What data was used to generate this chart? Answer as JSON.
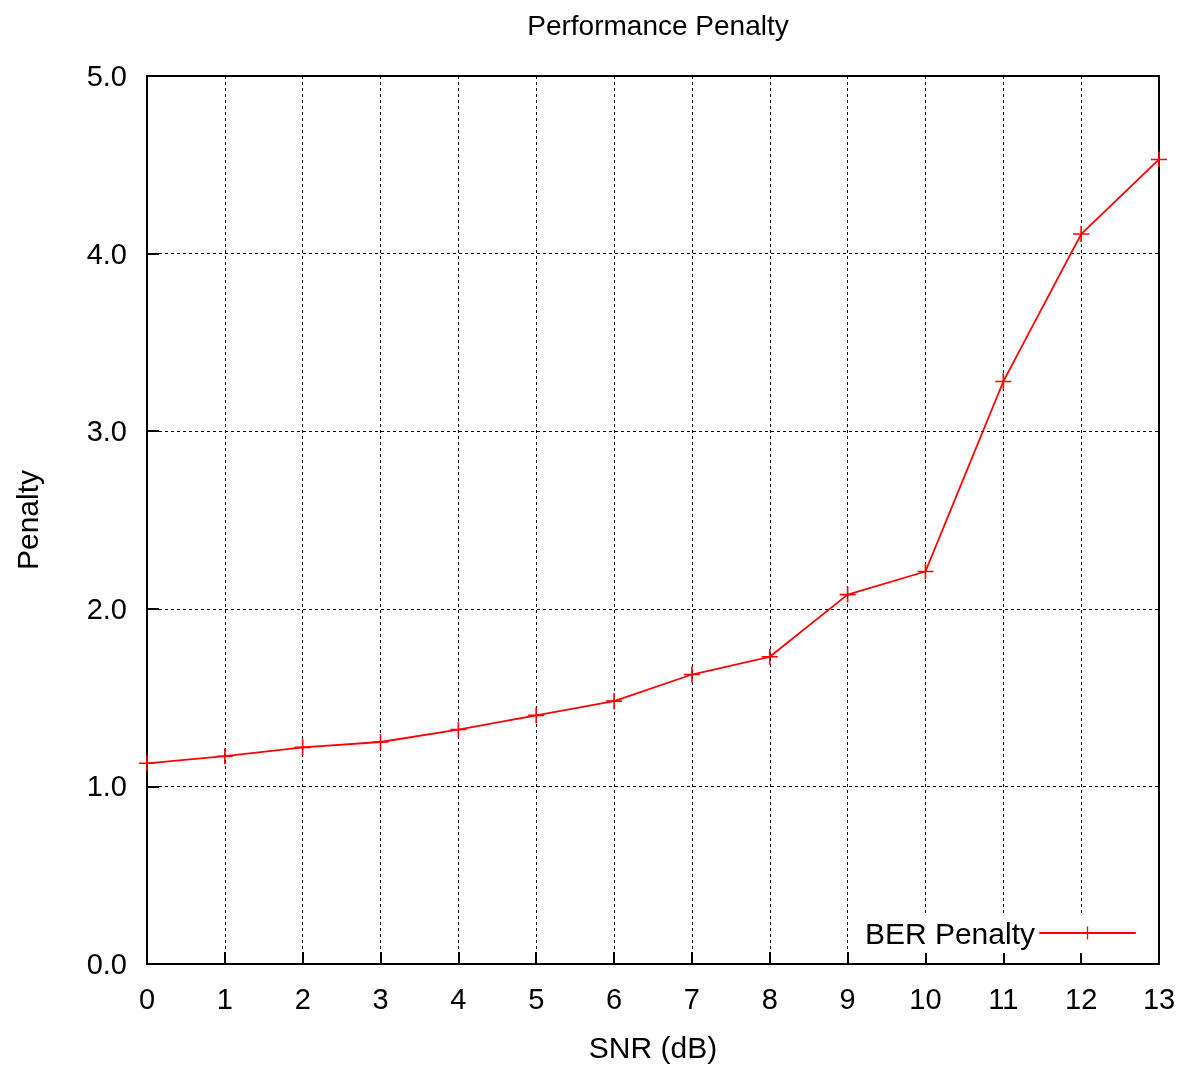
{
  "chart_data": {
    "type": "line",
    "title": "Performance Penalty",
    "xlabel": "SNR (dB)",
    "ylabel": "Penalty",
    "x": [
      0,
      1,
      2,
      3,
      4,
      5,
      6,
      7,
      8,
      9,
      10,
      11,
      12,
      13
    ],
    "series": [
      {
        "name": "BER Penalty",
        "color": "#ff0000",
        "values": [
          1.13,
          1.17,
          1.22,
          1.25,
          1.32,
          1.4,
          1.48,
          1.63,
          1.73,
          2.08,
          2.21,
          3.28,
          4.11,
          4.53
        ]
      }
    ],
    "xlim": [
      0,
      13
    ],
    "xticks": [
      0,
      1,
      2,
      3,
      4,
      5,
      6,
      7,
      8,
      9,
      10,
      11,
      12,
      13
    ],
    "ylim": [
      0,
      5
    ],
    "yticks": [
      {
        "value": 0,
        "label": "0.0"
      },
      {
        "value": 1,
        "label": "1.0"
      },
      {
        "value": 2,
        "label": "2.0"
      },
      {
        "value": 3,
        "label": "3.0"
      },
      {
        "value": 4,
        "label": "4.0"
      },
      {
        "value": 5,
        "label": "5.0"
      }
    ],
    "grid": true,
    "legend": "bottom right",
    "marker": "cross",
    "line_style": "solid"
  }
}
